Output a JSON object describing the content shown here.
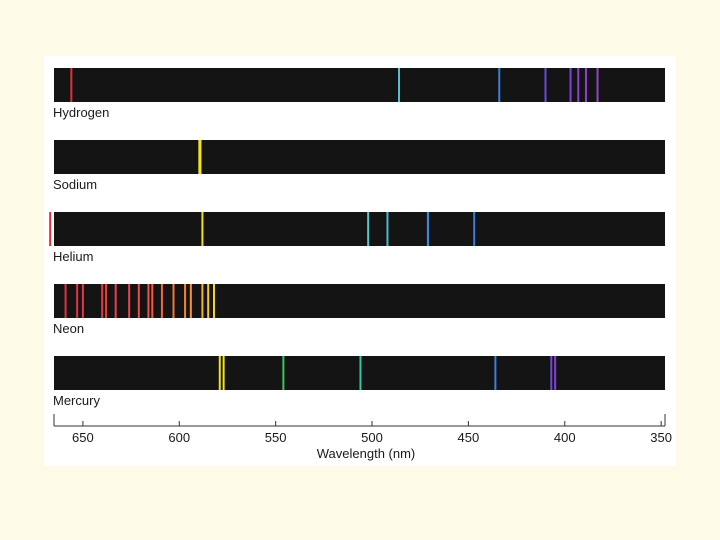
{
  "chart_data": {
    "type": "emission-spectra",
    "title": "",
    "xlabel": "Wavelength (nm)",
    "xlim": [
      665,
      348
    ],
    "xticks": [
      650,
      600,
      550,
      500,
      450,
      400,
      350
    ],
    "colors": {
      "background": "#fdfbe8",
      "panel": "#ffffff",
      "strip": "#141414",
      "axis": "#333333"
    },
    "spectra": [
      {
        "name": "Hydrogen",
        "lines": [
          {
            "nm": 656,
            "color": "#e0313a"
          },
          {
            "nm": 486,
            "color": "#52c3cf"
          },
          {
            "nm": 434,
            "color": "#3a7fdc"
          },
          {
            "nm": 410,
            "color": "#6a4ad8"
          },
          {
            "nm": 397,
            "color": "#7c44d4"
          },
          {
            "nm": 393,
            "color": "#8a40d0"
          },
          {
            "nm": 389,
            "color": "#9040cc"
          },
          {
            "nm": 383,
            "color": "#9444c8"
          }
        ]
      },
      {
        "name": "Sodium",
        "lines": [
          {
            "nm": 589,
            "color": "#f2e022"
          },
          {
            "nm": 589.6,
            "color": "#f2e022"
          }
        ]
      },
      {
        "name": "Helium",
        "lines": [
          {
            "nm": 667,
            "color": "#e0313a"
          },
          {
            "nm": 588,
            "color": "#f2e022"
          },
          {
            "nm": 502,
            "color": "#5ac8c8"
          },
          {
            "nm": 492,
            "color": "#4cb8d0"
          },
          {
            "nm": 471,
            "color": "#3c8fe0"
          },
          {
            "nm": 447,
            "color": "#3a7ad8"
          }
        ]
      },
      {
        "name": "Neon",
        "lines": [
          {
            "nm": 659,
            "color": "#e23040"
          },
          {
            "nm": 653,
            "color": "#e4324a"
          },
          {
            "nm": 650,
            "color": "#e63448"
          },
          {
            "nm": 640,
            "color": "#e83a3a"
          },
          {
            "nm": 638,
            "color": "#e83c3c"
          },
          {
            "nm": 633,
            "color": "#ec3e50"
          },
          {
            "nm": 626,
            "color": "#ee4450"
          },
          {
            "nm": 621,
            "color": "#f04c48"
          },
          {
            "nm": 616,
            "color": "#f25444"
          },
          {
            "nm": 614,
            "color": "#f45a40"
          },
          {
            "nm": 609,
            "color": "#f5663c"
          },
          {
            "nm": 603,
            "color": "#f67438"
          },
          {
            "nm": 597,
            "color": "#f68434"
          },
          {
            "nm": 594,
            "color": "#f69430"
          },
          {
            "nm": 588,
            "color": "#f4b02c"
          },
          {
            "nm": 585,
            "color": "#f2c82a"
          },
          {
            "nm": 582,
            "color": "#f2d828"
          }
        ]
      },
      {
        "name": "Mercury",
        "lines": [
          {
            "nm": 579,
            "color": "#f2e022"
          },
          {
            "nm": 577,
            "color": "#f2e022"
          },
          {
            "nm": 546,
            "color": "#3bc25a"
          },
          {
            "nm": 506,
            "color": "#33c8a0"
          },
          {
            "nm": 436,
            "color": "#3a7fdc"
          },
          {
            "nm": 407,
            "color": "#7048d4"
          },
          {
            "nm": 405,
            "color": "#8a40d0"
          }
        ]
      }
    ]
  }
}
